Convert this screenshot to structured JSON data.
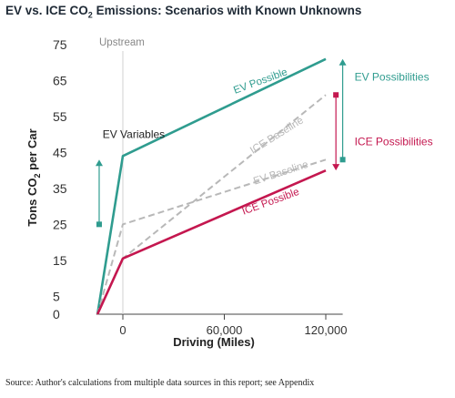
{
  "title": {
    "main": "EV vs. ICE CO",
    "sub": "2",
    "rest": " Emissions: Scenarios with Known Unknowns"
  },
  "source": "Source: Author's calculations from multiple data sources in this report; see Appendix",
  "colors": {
    "ev": "#2f9c8f",
    "ice": "#c4174f",
    "baseline": "#b8b8b8",
    "text": "#222222",
    "axis": "#444444"
  },
  "chart_data": {
    "type": "line",
    "title": "EV vs. ICE CO2 Emissions: Scenarios with Known Unknowns",
    "xlabel": "Driving (Miles)",
    "ylabel_parts": {
      "pre": "Tons CO",
      "sub": "2",
      "post": " per Car"
    },
    "xlim": [
      -20000,
      130000
    ],
    "ylim": [
      0,
      75
    ],
    "x_ticks": [
      {
        "value": 0,
        "label": "0"
      },
      {
        "value": 60000,
        "label": "60,000"
      },
      {
        "value": 120000,
        "label": "120,000"
      }
    ],
    "y_ticks": [
      {
        "value": 0,
        "label": "0"
      },
      {
        "value": 5,
        "label": "5"
      },
      {
        "value": 15,
        "label": "15"
      },
      {
        "value": 25,
        "label": "25"
      },
      {
        "value": 35,
        "label": "35"
      },
      {
        "value": 45,
        "label": "45"
      },
      {
        "value": 55,
        "label": "55"
      },
      {
        "value": 65,
        "label": "65"
      },
      {
        "value": 75,
        "label": "75"
      }
    ],
    "upstream_label": "Upstream",
    "upstream_x": 0,
    "series": [
      {
        "name": "EV Possible",
        "color": "#2f9c8f",
        "dash": false,
        "label_pos": [
          82000,
          64
        ],
        "label_angle": -20,
        "x": [
          -15000,
          0,
          120000
        ],
        "y": [
          0,
          44,
          71
        ]
      },
      {
        "name": "ICE Baseline",
        "color": "#b8b8b8",
        "dash": true,
        "label_pos": [
          92000,
          49
        ],
        "label_angle": -32,
        "x": [
          -15000,
          0,
          120000
        ],
        "y": [
          0,
          15.5,
          61
        ]
      },
      {
        "name": "EV Baseline",
        "color": "#b8b8b8",
        "dash": true,
        "label_pos": [
          94000,
          38.5
        ],
        "label_angle": -18,
        "x": [
          -15000,
          0,
          120000
        ],
        "y": [
          0,
          25,
          43
        ]
      },
      {
        "name": "ICE Possible",
        "color": "#c4174f",
        "dash": false,
        "label_pos": [
          88000,
          30.5
        ],
        "label_angle": -20,
        "x": [
          -15000,
          0,
          120000
        ],
        "y": [
          0,
          15.5,
          40
        ]
      }
    ],
    "annotations": [
      {
        "text": "EV Variables",
        "color": "#222222",
        "pos": [
          -12000,
          49
        ],
        "arrow": {
          "color": "#2f9c8f",
          "x": -14000,
          "y_from": 25,
          "y_to": 43
        }
      },
      {
        "text": "EV Possibilities",
        "color": "#2f9c8f",
        "pos": [
          137000,
          65
        ],
        "arrow": {
          "color": "#2f9c8f",
          "x": 130000,
          "y_from": 43,
          "y_to": 71
        }
      },
      {
        "text": "ICE Possibilities",
        "color": "#c4174f",
        "pos": [
          137000,
          47
        ],
        "arrow": {
          "color": "#c4174f",
          "x": 126000,
          "y_from": 61,
          "y_to": 40
        }
      }
    ]
  }
}
